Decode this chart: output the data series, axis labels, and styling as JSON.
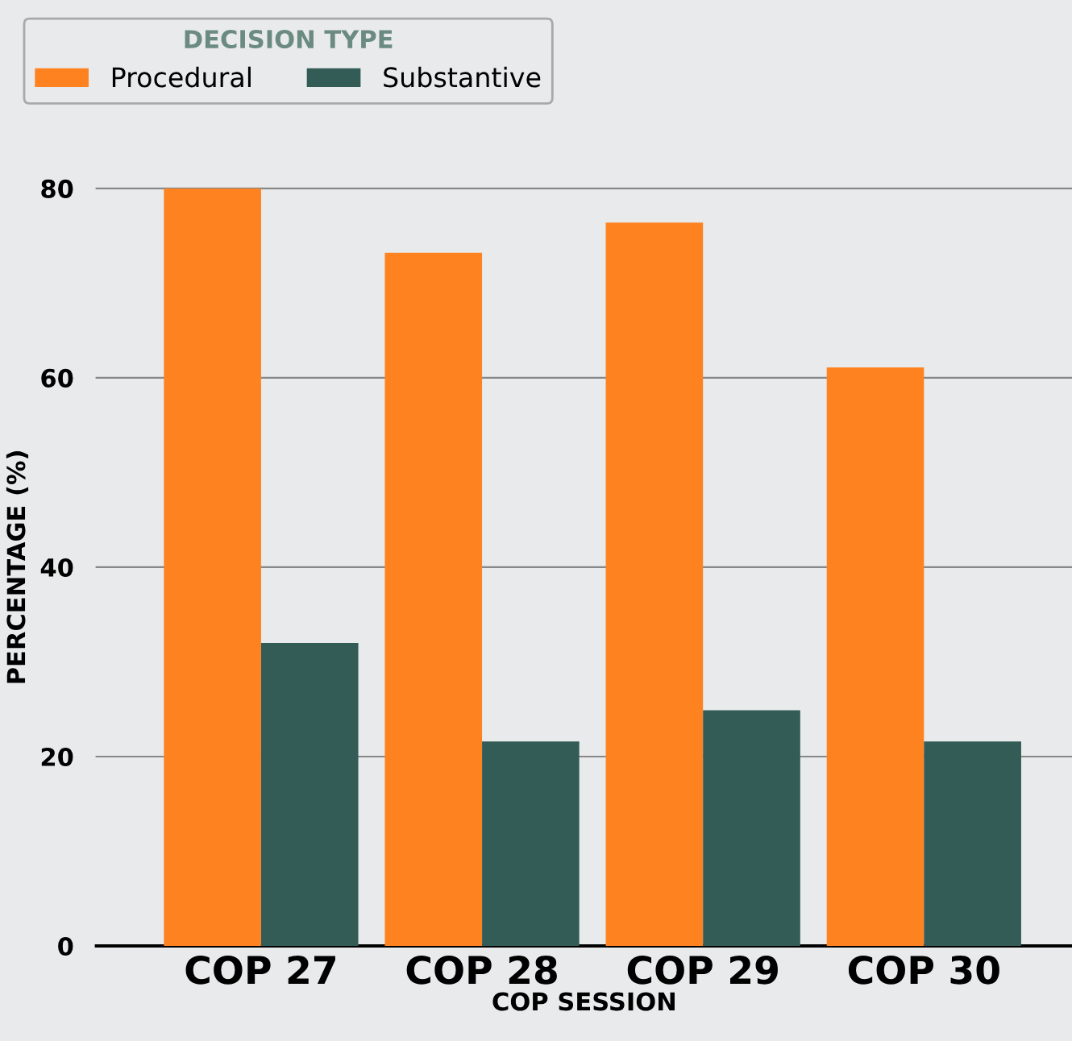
{
  "chart_data": {
    "type": "bar",
    "xlabel": "COP SESSION",
    "ylabel": "PERCENTAGE (%)",
    "legend_title": "DECISION TYPE",
    "categories": [
      "COP 27",
      "COP 28",
      "COP 29",
      "COP 30"
    ],
    "series": [
      {
        "name": "Procedural",
        "color": "#ff8220",
        "values": [
          80.0,
          73.2,
          76.4,
          61.1
        ]
      },
      {
        "name": "Substantive",
        "color": "#335c56",
        "values": [
          32.0,
          21.6,
          24.9,
          21.6
        ]
      }
    ],
    "ylim": [
      0,
      80
    ],
    "yticks": [
      0,
      20,
      40,
      60,
      80
    ],
    "grid": "y",
    "legend": "top left"
  }
}
